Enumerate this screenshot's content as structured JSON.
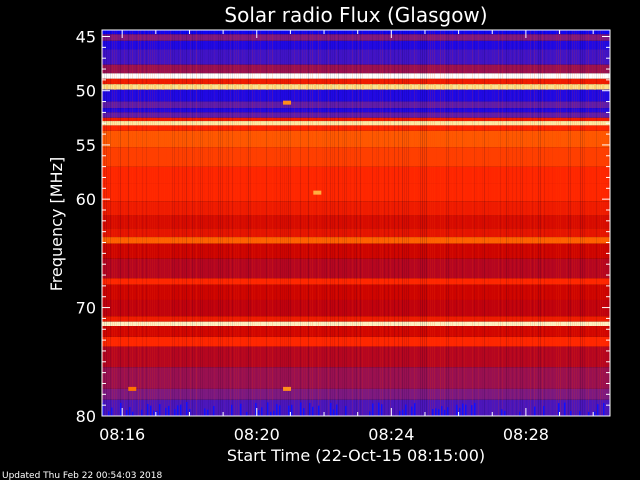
{
  "chart_data": {
    "type": "heatmap",
    "title": "Solar radio Flux (Glasgow)",
    "xlabel": "Start Time (22-Oct-15 08:15:00)",
    "ylabel": "Frequency [MHz]",
    "x_unit": "minutes after 08:15:00",
    "xlim": [
      0.4,
      15.5
    ],
    "ylim": [
      80,
      44.4
    ],
    "x_ticks": [
      {
        "value": 1,
        "label": "08:16"
      },
      {
        "value": 5,
        "label": "08:20"
      },
      {
        "value": 9,
        "label": "08:24"
      },
      {
        "value": 13,
        "label": "08:28"
      }
    ],
    "y_ticks": [
      {
        "value": 45,
        "label": "45"
      },
      {
        "value": 50,
        "label": "50"
      },
      {
        "value": 55,
        "label": "55"
      },
      {
        "value": 60,
        "label": "60"
      },
      {
        "value": 70,
        "label": "70"
      },
      {
        "value": 80,
        "label": "80"
      }
    ],
    "colormap": [
      "#0000ff",
      "#6a1fa0",
      "#c80000",
      "#ff2600",
      "#ff7a00",
      "#ffe080",
      "#ffffff"
    ],
    "bands": [
      {
        "from": 44.4,
        "to": 44.8,
        "level": 0.02
      },
      {
        "from": 44.8,
        "to": 45.4,
        "level": 0.2
      },
      {
        "from": 45.4,
        "to": 46.2,
        "level": 0.05
      },
      {
        "from": 46.2,
        "to": 47.6,
        "level": 0.1
      },
      {
        "from": 47.6,
        "to": 48.4,
        "level": 0.25
      },
      {
        "from": 48.4,
        "to": 48.9,
        "level": 1.0
      },
      {
        "from": 48.9,
        "to": 49.4,
        "level": 0.45
      },
      {
        "from": 49.4,
        "to": 49.9,
        "level": 0.85
      },
      {
        "from": 49.9,
        "to": 51.0,
        "level": 0.05
      },
      {
        "from": 51.0,
        "to": 51.6,
        "level": 0.15
      },
      {
        "from": 51.6,
        "to": 52.0,
        "level": 0.05
      },
      {
        "from": 52.0,
        "to": 52.5,
        "level": 0.15
      },
      {
        "from": 52.5,
        "to": 52.8,
        "level": 0.45
      },
      {
        "from": 52.8,
        "to": 53.2,
        "level": 0.88
      },
      {
        "from": 53.2,
        "to": 53.7,
        "level": 0.5
      },
      {
        "from": 53.7,
        "to": 55.2,
        "level": 0.6
      },
      {
        "from": 55.2,
        "to": 57.0,
        "level": 0.55
      },
      {
        "from": 57.0,
        "to": 58.6,
        "level": 0.5
      },
      {
        "from": 58.6,
        "to": 60.2,
        "level": 0.5
      },
      {
        "from": 60.2,
        "to": 61.5,
        "level": 0.45
      },
      {
        "from": 61.5,
        "to": 62.7,
        "level": 0.38
      },
      {
        "from": 62.7,
        "to": 63.5,
        "level": 0.42
      },
      {
        "from": 63.5,
        "to": 64.1,
        "level": 0.62
      },
      {
        "from": 64.1,
        "to": 65.5,
        "level": 0.35
      },
      {
        "from": 65.5,
        "to": 67.3,
        "level": 0.3
      },
      {
        "from": 67.3,
        "to": 67.9,
        "level": 0.5
      },
      {
        "from": 67.9,
        "to": 69.3,
        "level": 0.35
      },
      {
        "from": 69.3,
        "to": 70.8,
        "level": 0.32
      },
      {
        "from": 70.8,
        "to": 71.3,
        "level": 0.45
      },
      {
        "from": 71.3,
        "to": 71.7,
        "level": 0.92
      },
      {
        "from": 71.7,
        "to": 72.7,
        "level": 0.36
      },
      {
        "from": 72.7,
        "to": 73.6,
        "level": 0.5
      },
      {
        "from": 73.6,
        "to": 75.5,
        "level": 0.3
      },
      {
        "from": 75.5,
        "to": 77.5,
        "level": 0.25
      },
      {
        "from": 77.5,
        "to": 78.5,
        "level": 0.2
      },
      {
        "from": 78.5,
        "to": 80.0,
        "level": 0.12
      }
    ],
    "bursts": [
      {
        "time": 5.9,
        "freq": 51.1,
        "level": 0.7
      },
      {
        "time": 6.8,
        "freq": 59.4,
        "level": 0.75
      },
      {
        "time": 5.9,
        "freq": 77.5,
        "level": 0.7
      },
      {
        "time": 1.3,
        "freq": 77.5,
        "level": 0.65
      }
    ]
  },
  "footer": {
    "updated": "Updated Thu Feb 22 00:54:03 2018"
  }
}
